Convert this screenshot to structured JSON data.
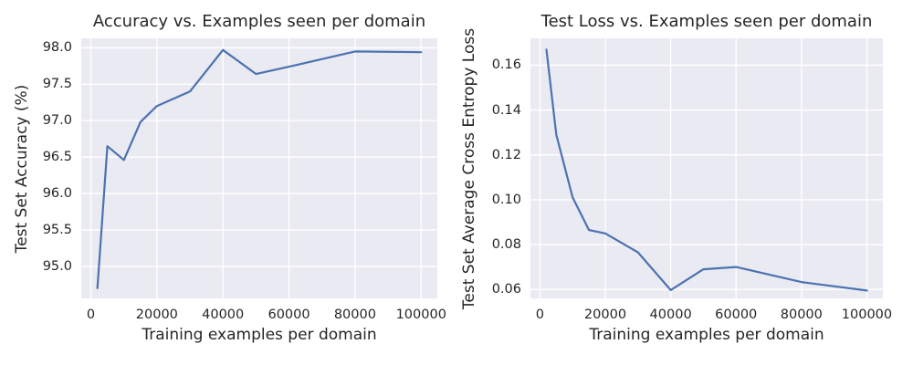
{
  "figure": {
    "background": "#ffffff"
  },
  "style": {
    "axes_background": "#eaeaf2",
    "grid_color": "#ffffff",
    "line_color": "#4c72b0",
    "text_color": "#262626"
  },
  "chart_data": [
    {
      "type": "line",
      "title": "Accuracy vs. Examples seen per domain",
      "xlabel": "Training examples per domain",
      "ylabel": "Test Set Accuracy (%)",
      "x": [
        2000,
        5000,
        10000,
        15000,
        20000,
        30000,
        40000,
        50000,
        60000,
        80000,
        100000
      ],
      "y": [
        94.7,
        96.65,
        96.46,
        96.98,
        97.2,
        97.4,
        97.97,
        97.64,
        97.74,
        97.95,
        97.94
      ],
      "xlim": [
        -2900,
        104900
      ],
      "ylim": [
        94.56,
        98.13
      ],
      "xticks": [
        0,
        20000,
        40000,
        60000,
        80000,
        100000
      ],
      "xtick_labels": [
        "0",
        "20000",
        "40000",
        "60000",
        "80000",
        "100000"
      ],
      "yticks": [
        95.0,
        95.5,
        96.0,
        96.5,
        97.0,
        97.5,
        98.0
      ],
      "ytick_labels": [
        "95.0",
        "95.5",
        "96.0",
        "96.5",
        "97.0",
        "97.5",
        "98.0"
      ],
      "grid": true,
      "legend": null
    },
    {
      "type": "line",
      "title": "Test Loss vs. Examples seen per domain",
      "xlabel": "Training examples per domain",
      "ylabel": "Test Set Average Cross Entropy Loss",
      "x": [
        2000,
        5000,
        10000,
        15000,
        20000,
        30000,
        40000,
        50000,
        60000,
        80000,
        100000
      ],
      "y": [
        0.167,
        0.129,
        0.101,
        0.0865,
        0.085,
        0.0765,
        0.0597,
        0.069,
        0.07,
        0.0633,
        0.0595
      ],
      "xlim": [
        -2900,
        104900
      ],
      "ylim": [
        0.056,
        0.172
      ],
      "xticks": [
        0,
        20000,
        40000,
        60000,
        80000,
        100000
      ],
      "xtick_labels": [
        "0",
        "20000",
        "40000",
        "60000",
        "80000",
        "100000"
      ],
      "yticks": [
        0.06,
        0.08,
        0.1,
        0.12,
        0.14,
        0.16
      ],
      "ytick_labels": [
        "0.06",
        "0.08",
        "0.10",
        "0.12",
        "0.14",
        "0.16"
      ],
      "grid": true,
      "legend": null
    }
  ]
}
